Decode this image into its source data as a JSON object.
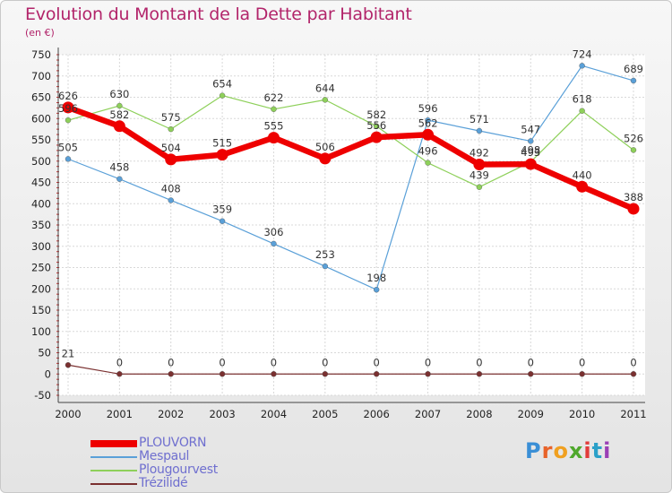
{
  "header": {
    "title": "Evolution du Montant de la Dette par Habitant",
    "unit": "(en €)"
  },
  "logo": {
    "letters": [
      "P",
      "r",
      "o",
      "x",
      "i",
      "t",
      "i"
    ],
    "colors": [
      "#3a8fd6",
      "#e8632a",
      "#f0a020",
      "#4fa82c",
      "#e23b3b",
      "#2aa0c8",
      "#9a3fb5"
    ]
  },
  "chart_data": {
    "type": "line",
    "title": "Evolution du Montant de la Dette par Habitant",
    "xlabel": "",
    "ylabel": "",
    "categories": [
      "2000",
      "2001",
      "2002",
      "2003",
      "2004",
      "2005",
      "2006",
      "2007",
      "2008",
      "2009",
      "2010",
      "2011"
    ],
    "ylim": [
      -50,
      750
    ],
    "yticks": [
      -50,
      0,
      50,
      100,
      150,
      200,
      250,
      300,
      350,
      400,
      450,
      500,
      550,
      600,
      650,
      700,
      750
    ],
    "grid": true,
    "legend_position": "bottom-left",
    "series": [
      {
        "name": "PLOUVORN",
        "color": "#ee0000",
        "values": [
          626,
          582,
          504,
          515,
          555,
          506,
          556,
          562,
          492,
          493,
          440,
          388
        ],
        "labels": [
          "626",
          "582",
          "504",
          "515",
          "555",
          "506",
          "556",
          "562",
          "492",
          "493",
          "440",
          "388"
        ]
      },
      {
        "name": "Mespaul",
        "color": "#5aa0d8",
        "values": [
          505,
          458,
          408,
          359,
          306,
          253,
          198,
          596,
          571,
          547,
          724,
          689
        ],
        "labels": [
          "505",
          "458",
          "408",
          "359",
          "306",
          "253",
          "198",
          "596",
          "571",
          "547",
          "724",
          "689"
        ]
      },
      {
        "name": "Plougourvest",
        "color": "#8ed05a",
        "values": [
          596,
          630,
          575,
          654,
          622,
          644,
          582,
          496,
          439,
          498,
          618,
          526
        ],
        "labels": [
          "596",
          "630",
          "575",
          "654",
          "622",
          "644",
          "582",
          "496",
          "439",
          "498",
          "618",
          "526"
        ]
      },
      {
        "name": "Trézilidé",
        "color": "#7a3030",
        "values": [
          21,
          0,
          0,
          0,
          0,
          0,
          0,
          0,
          0,
          0,
          0,
          0
        ],
        "labels": [
          "21",
          "0",
          "0",
          "0",
          "0",
          "0",
          "0",
          "0",
          "0",
          "0",
          "0",
          "0"
        ]
      }
    ]
  }
}
